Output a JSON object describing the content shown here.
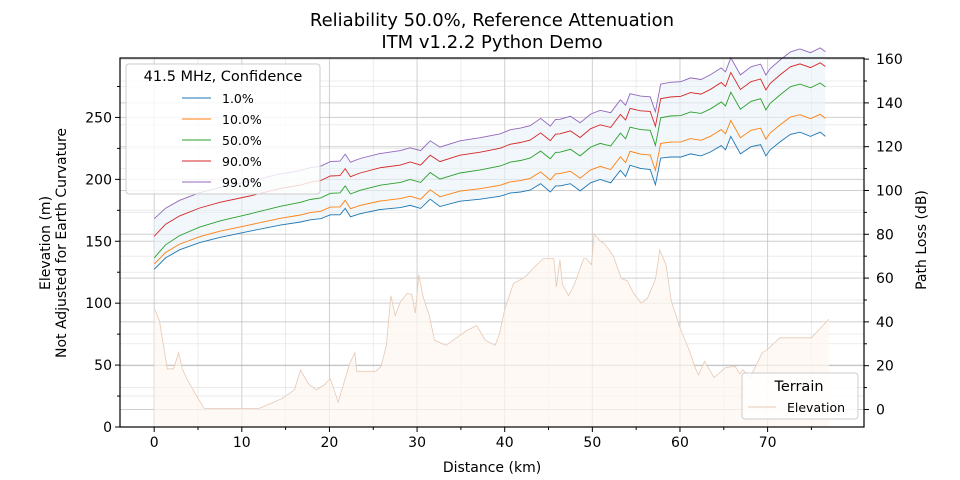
{
  "chart_data": {
    "type": "line",
    "title": "Reliability 50.0%, Reference Attenuation",
    "subtitle": "ITM v1.2.2 Python Demo",
    "xlabel": "Distance (km)",
    "ylabel_left": [
      "Elevation (m)",
      "Not Adjusted for Earth Curvature"
    ],
    "ylabel_right": "Path Loss (dB)",
    "xlim": [
      -3.9,
      81.0
    ],
    "ylim_left": [
      0,
      298
    ],
    "ylim_right": [
      -8,
      160.5
    ],
    "xticks": [
      0,
      10,
      20,
      30,
      40,
      50,
      60,
      70
    ],
    "yticks_left": [
      0,
      50,
      100,
      150,
      200,
      250
    ],
    "yticks_right": [
      0,
      20,
      40,
      60,
      80,
      100,
      120,
      140,
      160
    ],
    "grid": true,
    "legend_pathloss": {
      "title": "41.5 MHz, Confidence",
      "placement": "upper-left",
      "entries": [
        {
          "label": "1.0%",
          "color": "#1f77b4"
        },
        {
          "label": "10.0%",
          "color": "#ff7f0e"
        },
        {
          "label": "50.0%",
          "color": "#2ca02c"
        },
        {
          "label": "90.0%",
          "color": "#d62728"
        },
        {
          "label": "99.0%",
          "color": "#9467bd"
        }
      ]
    },
    "legend_terrain": {
      "title": "Terrain",
      "placement": "lower-right",
      "entries": [
        {
          "label": "Elevation",
          "color": "#e6c9b5"
        }
      ]
    },
    "x": [
      0,
      1.3,
      2.9,
      5.2,
      7.5,
      10.9,
      14.4,
      16.7,
      17.8,
      19.0,
      20.1,
      21.2,
      21.8,
      22.4,
      23.5,
      25.8,
      28.1,
      29.2,
      30.4,
      31.5,
      32.6,
      34.9,
      37.2,
      39.5,
      40.6,
      41.8,
      42.9,
      44.1,
      45.2,
      45.8,
      46.3,
      47.5,
      48.6,
      49.8,
      50.9,
      52.1,
      53.2,
      53.8,
      54.3,
      55.5,
      56.6,
      57.2,
      57.8,
      58.9,
      60.1,
      61.2,
      62.4,
      63.5,
      64.7,
      65.2,
      65.8,
      66.9,
      68.1,
      69.2,
      69.8,
      70.3,
      71.5,
      72.6,
      73.7,
      74.9,
      76.0,
      76.6
    ],
    "series": [
      {
        "name": "1.0%",
        "values": [
          64.0,
          69.2,
          72.9,
          76.2,
          78.6,
          81.4,
          84.2,
          85.6,
          86.6,
          87.1,
          88.9,
          88.9,
          91.8,
          88.0,
          89.4,
          91.3,
          92.2,
          93.2,
          91.8,
          96.0,
          92.7,
          95.1,
          96.0,
          97.4,
          98.8,
          99.3,
          100.2,
          103.1,
          99.3,
          102.1,
          102.1,
          103.1,
          99.8,
          103.5,
          105.0,
          103.5,
          109.2,
          106.4,
          111.5,
          110.1,
          109.6,
          102.6,
          114.8,
          115.3,
          115.3,
          116.7,
          115.8,
          117.6,
          120.5,
          118.6,
          124.7,
          116.7,
          120.0,
          120.9,
          115.8,
          118.6,
          122.4,
          125.6,
          126.6,
          124.7,
          126.6,
          124.7
        ]
      },
      {
        "name": "10.0%",
        "values": [
          66.4,
          71.7,
          75.5,
          78.9,
          81.4,
          84.3,
          87.3,
          88.8,
          89.9,
          90.5,
          92.4,
          92.5,
          95.5,
          91.7,
          93.2,
          95.2,
          96.3,
          97.4,
          96.0,
          100.3,
          97.1,
          99.7,
          100.8,
          102.4,
          103.9,
          104.5,
          105.5,
          108.5,
          104.8,
          107.6,
          107.7,
          108.8,
          105.6,
          109.4,
          111.0,
          109.6,
          115.4,
          112.7,
          117.9,
          116.6,
          116.2,
          109.2,
          121.5,
          122.1,
          122.2,
          123.7,
          122.9,
          124.8,
          127.8,
          125.9,
          132.0,
          124.1,
          127.5,
          128.5,
          123.4,
          126.3,
          130.2,
          133.5,
          134.6,
          132.8,
          134.8,
          132.9
        ]
      },
      {
        "name": "50.0%",
        "values": [
          69.2,
          75.2,
          79.4,
          83.3,
          86.1,
          89.3,
          92.8,
          94.6,
          95.9,
          96.6,
          98.7,
          98.9,
          102.1,
          98.4,
          100.1,
          102.4,
          103.7,
          105.0,
          103.7,
          108.2,
          105.2,
          108.0,
          109.4,
          111.2,
          112.9,
          113.7,
          114.8,
          118.0,
          114.5,
          117.4,
          117.5,
          118.8,
          115.8,
          119.8,
          121.5,
          120.3,
          126.2,
          123.6,
          128.9,
          127.8,
          127.5,
          120.6,
          133.2,
          134.0,
          134.2,
          135.9,
          135.2,
          137.3,
          140.4,
          138.6,
          144.9,
          137.1,
          140.7,
          141.9,
          136.8,
          139.8,
          143.9,
          147.4,
          148.6,
          146.9,
          149.1,
          147.3
        ]
      },
      {
        "name": "90.0%",
        "values": [
          79.1,
          84.6,
          88.4,
          92.0,
          94.6,
          97.5,
          100.9,
          102.5,
          103.8,
          104.5,
          106.6,
          106.8,
          110.0,
          106.3,
          108.0,
          110.4,
          111.6,
          113.0,
          111.6,
          116.1,
          113.2,
          116.1,
          117.5,
          119.3,
          121.1,
          121.9,
          123.0,
          126.3,
          122.8,
          125.7,
          125.9,
          127.2,
          124.2,
          128.2,
          130.0,
          128.8,
          134.7,
          132.2,
          137.5,
          136.4,
          136.1,
          129.3,
          141.9,
          142.7,
          143.0,
          144.7,
          144.0,
          146.2,
          149.3,
          147.5,
          153.9,
          146.1,
          149.7,
          150.9,
          145.9,
          148.9,
          153.0,
          156.5,
          157.8,
          156.1,
          158.3,
          156.6
        ]
      },
      {
        "name": "99.0%",
        "values": [
          87.1,
          91.9,
          95.5,
          99.0,
          101.4,
          104.2,
          107.6,
          109.1,
          110.4,
          111.1,
          113.2,
          113.4,
          116.6,
          112.9,
          114.6,
          116.9,
          118.2,
          119.5,
          118.2,
          122.7,
          119.8,
          122.7,
          124.1,
          125.9,
          127.7,
          128.5,
          129.6,
          132.9,
          129.4,
          132.4,
          132.5,
          133.9,
          130.9,
          134.9,
          136.6,
          135.5,
          141.4,
          138.9,
          144.2,
          143.1,
          142.8,
          136.0,
          148.6,
          149.4,
          149.7,
          151.4,
          150.7,
          152.9,
          156.0,
          154.2,
          160.6,
          152.8,
          156.5,
          157.7,
          152.7,
          155.7,
          159.8,
          163.3,
          164.6,
          162.9,
          165.1,
          163.4
        ]
      }
    ],
    "terrain": {
      "name": "Elevation",
      "axis": "left",
      "x": [
        0,
        0.6,
        1.5,
        2.2,
        2.8,
        3.2,
        3.8,
        4.6,
        5.7,
        6.5,
        9.0,
        12.0,
        14.6,
        16.0,
        16.7,
        17.6,
        18.5,
        19.4,
        20.1,
        21.0,
        22.3,
        22.9,
        23.1,
        25.3,
        25.9,
        26.5,
        27.0,
        27.5,
        28.1,
        28.9,
        29.4,
        29.8,
        30.2,
        30.7,
        31.4,
        32.0,
        33.3,
        34.5,
        35.7,
        36.8,
        37.8,
        38.9,
        39.4,
        40.0,
        41.0,
        42.3,
        43.5,
        44.4,
        45.6,
        45.9,
        46.3,
        46.6,
        47.3,
        48.0,
        49.0,
        49.3,
        49.9,
        50.2,
        50.9,
        51.4,
        52.4,
        53.3,
        54.0,
        54.7,
        55.6,
        56.3,
        57.2,
        57.7,
        58.4,
        59.0,
        60.0,
        61.0,
        61.8,
        62.1,
        62.8,
        63.9,
        65.2,
        66.3,
        66.8,
        67.2,
        68.0,
        69.4,
        69.9,
        71.4,
        72.5,
        75.0,
        76.3,
        77.0
      ],
      "values": [
        96,
        86,
        47,
        47,
        60,
        47,
        38,
        28,
        15,
        15,
        15,
        15,
        23,
        30,
        46,
        35,
        30,
        34,
        39,
        20,
        51,
        60,
        45,
        45,
        49,
        66,
        106,
        90,
        101,
        108,
        107,
        92,
        123,
        105,
        90,
        70,
        66,
        72,
        78,
        82,
        70,
        66,
        75,
        95,
        116,
        121,
        130,
        136,
        136,
        113,
        135,
        115,
        106,
        116,
        136,
        136,
        131,
        156,
        150,
        148,
        138,
        120,
        118,
        108,
        100,
        104,
        119,
        143,
        131,
        102,
        80,
        63,
        47,
        42,
        53,
        40,
        48,
        49,
        43,
        46,
        40,
        60,
        62,
        72,
        72,
        72,
        82,
        87
      ]
    }
  }
}
